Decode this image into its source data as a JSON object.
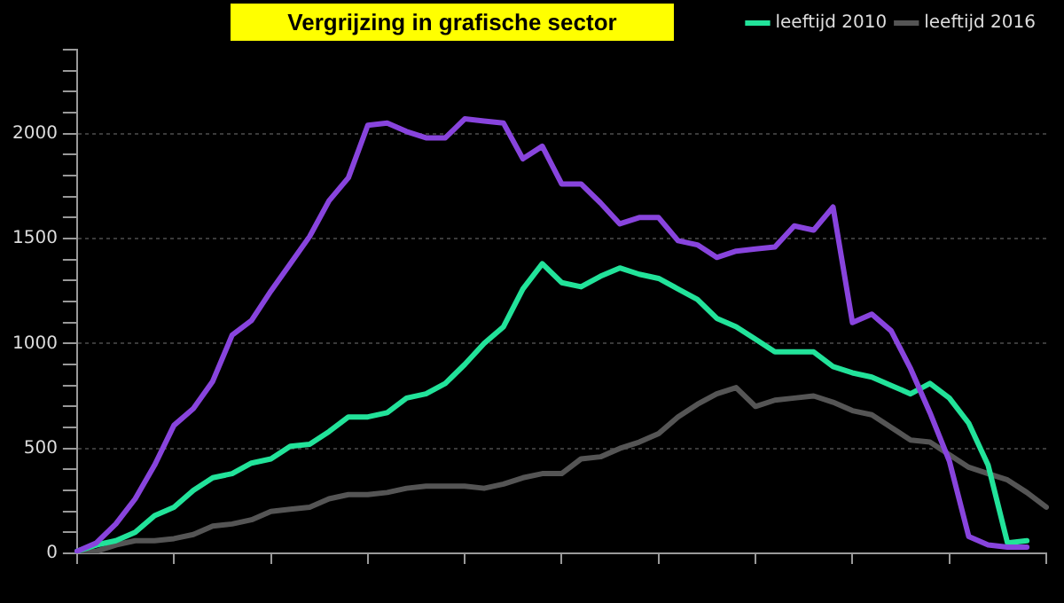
{
  "chart_data": {
    "type": "line",
    "title": "Vergrijzing in grafische sector",
    "categories": [
      null,
      null,
      null,
      null,
      null,
      null,
      null,
      null,
      null,
      null,
      null,
      null,
      null,
      null,
      null,
      null,
      null,
      null,
      null,
      null,
      null,
      null,
      null,
      null,
      null,
      null,
      null,
      null,
      null,
      null,
      null,
      null,
      null,
      null,
      null,
      null,
      null,
      null,
      null,
      null,
      null,
      null,
      null,
      null,
      null,
      null,
      null,
      null,
      null,
      null,
      null
    ],
    "series": [
      {
        "color": "#8844dd",
        "values": [
          10,
          50,
          140,
          260,
          420,
          610,
          690,
          820,
          1040,
          1110,
          1250,
          1380,
          1510,
          1680,
          1790,
          2040,
          2050,
          2010,
          1980,
          1980,
          2070,
          2060,
          2050,
          1880,
          1940,
          1760,
          1760,
          1670,
          1570,
          1600,
          1600,
          1490,
          1470,
          1410,
          1440,
          1450,
          1460,
          1560,
          1540,
          1650,
          1100,
          1140,
          1060,
          880,
          670,
          440,
          80,
          40,
          30,
          30,
          null
        ]
      },
      {
        "name": "leeftijd 2010",
        "color": "#22e39a",
        "values": [
          10,
          40,
          60,
          100,
          180,
          220,
          300,
          360,
          380,
          430,
          450,
          510,
          520,
          580,
          650,
          650,
          670,
          740,
          760,
          810,
          900,
          1000,
          1080,
          1260,
          1380,
          1290,
          1270,
          1320,
          1360,
          1330,
          1310,
          1260,
          1210,
          1120,
          1080,
          1020,
          960,
          960,
          960,
          890,
          860,
          840,
          800,
          760,
          810,
          740,
          620,
          420,
          50,
          60,
          null
        ]
      },
      {
        "name": "leeftijd 2016",
        "color": "#555555",
        "values": [
          0,
          10,
          40,
          60,
          60,
          70,
          90,
          130,
          140,
          160,
          200,
          210,
          220,
          260,
          280,
          280,
          290,
          310,
          320,
          320,
          320,
          310,
          330,
          360,
          380,
          380,
          450,
          460,
          500,
          530,
          570,
          650,
          710,
          760,
          790,
          700,
          730,
          740,
          750,
          720,
          680,
          660,
          600,
          540,
          530,
          470,
          410,
          380,
          350,
          290,
          220
        ]
      }
    ],
    "ylim": [
      0,
      2400
    ],
    "yticks": [
      0,
      {
        "value": 100,
        "label": null
      },
      {
        "value": 200,
        "label": null
      },
      {
        "value": 300,
        "label": null
      },
      {
        "value": 400,
        "label": null
      },
      500,
      {
        "value": 600,
        "label": null
      },
      {
        "value": 700,
        "label": null
      },
      {
        "value": 800,
        "label": null
      },
      {
        "value": 900,
        "label": null
      },
      1000,
      {
        "value": 1100,
        "label": null
      },
      {
        "value": 1200,
        "label": null
      },
      {
        "value": 1300,
        "label": null
      },
      {
        "value": 1400,
        "label": null
      },
      1500,
      {
        "value": 1600,
        "label": null
      },
      {
        "value": 1700,
        "label": null
      },
      {
        "value": 1800,
        "label": null
      },
      {
        "value": 1900,
        "label": null
      },
      2000,
      {
        "value": 2100,
        "label": null
      },
      {
        "value": 2200,
        "label": null
      },
      {
        "value": 2300,
        "label": null
      },
      {
        "value": 2400,
        "label": null
      }
    ],
    "tick_labels": "y",
    "grid": "y",
    "legend": "top right",
    "marker": "none",
    "line_style": "solid"
  }
}
